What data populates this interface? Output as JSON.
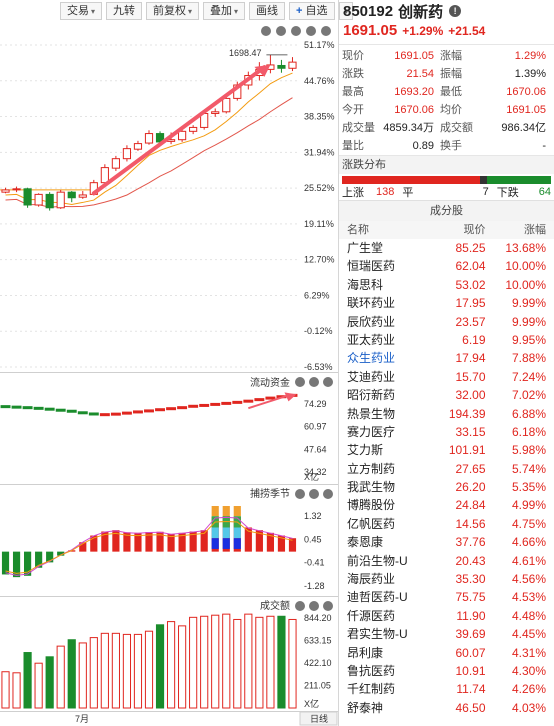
{
  "toolbar": {
    "trade": "交易",
    "jiuzhuan": "九转",
    "adjust": "前复权",
    "overlay": "叠加",
    "draw": "画线",
    "watchlist": "自选",
    "plus": "+",
    "caret": "▾"
  },
  "main_chart": {
    "high_label": "1698.47",
    "pct_ticks": [
      "51.17%",
      "44.76%",
      "38.35%",
      "31.94%",
      "25.52%",
      "19.11%",
      "12.70%",
      "6.29%",
      "-0.12%",
      "-6.53%"
    ],
    "pct_values": [
      51.17,
      44.76,
      38.35,
      31.94,
      25.52,
      19.11,
      12.7,
      6.29,
      -0.12,
      -6.53
    ]
  },
  "fund_flow": {
    "title": "流动资金",
    "ticks": [
      "74.29",
      "60.97",
      "47.64",
      "34.32"
    ],
    "unit": "X亿"
  },
  "catch": {
    "title": "捕捞季节",
    "ticks": [
      "1.32",
      "0.45",
      "-0.41",
      "-1.28"
    ]
  },
  "volume": {
    "title": "成交额",
    "ticks": [
      "844.20",
      "633.15",
      "422.10",
      "211.05"
    ],
    "unit": "X亿",
    "month": "7月",
    "period": "日线"
  },
  "chart_data": [
    {
      "type": "candlestick",
      "name": "daily",
      "values": [
        {
          "o": 24.8,
          "c": 25.2,
          "l": 24.6,
          "h": 25.6,
          "up": true
        },
        {
          "o": 25.3,
          "c": 25.4,
          "l": 24.8,
          "h": 25.8,
          "up": true
        },
        {
          "o": 25.4,
          "c": 22.5,
          "l": 22.0,
          "h": 25.6,
          "up": false
        },
        {
          "o": 22.5,
          "c": 24.4,
          "l": 22.2,
          "h": 24.6,
          "up": true
        },
        {
          "o": 24.4,
          "c": 22.0,
          "l": 21.5,
          "h": 24.8,
          "up": false
        },
        {
          "o": 22.0,
          "c": 24.8,
          "l": 21.8,
          "h": 25.2,
          "up": true
        },
        {
          "o": 24.8,
          "c": 23.8,
          "l": 23.0,
          "h": 25.0,
          "up": false
        },
        {
          "o": 23.9,
          "c": 24.3,
          "l": 23.6,
          "h": 25.0,
          "up": true
        },
        {
          "o": 24.4,
          "c": 26.5,
          "l": 24.2,
          "h": 27.0,
          "up": true
        },
        {
          "o": 26.5,
          "c": 29.2,
          "l": 26.4,
          "h": 29.8,
          "up": true
        },
        {
          "o": 29.1,
          "c": 30.8,
          "l": 28.6,
          "h": 31.3,
          "up": true
        },
        {
          "o": 30.8,
          "c": 32.6,
          "l": 30.3,
          "h": 33.2,
          "up": true
        },
        {
          "o": 32.5,
          "c": 33.5,
          "l": 32.2,
          "h": 34.0,
          "up": true
        },
        {
          "o": 33.6,
          "c": 35.3,
          "l": 33.3,
          "h": 35.9,
          "up": true
        },
        {
          "o": 35.3,
          "c": 33.8,
          "l": 33.5,
          "h": 35.7,
          "up": false
        },
        {
          "o": 33.9,
          "c": 34.2,
          "l": 33.4,
          "h": 35.5,
          "up": true
        },
        {
          "o": 34.2,
          "c": 35.7,
          "l": 33.8,
          "h": 36.0,
          "up": true
        },
        {
          "o": 35.7,
          "c": 36.4,
          "l": 35.2,
          "h": 36.8,
          "up": true
        },
        {
          "o": 36.4,
          "c": 38.9,
          "l": 36.0,
          "h": 39.4,
          "up": true
        },
        {
          "o": 38.9,
          "c": 39.2,
          "l": 38.3,
          "h": 39.8,
          "up": true
        },
        {
          "o": 39.2,
          "c": 41.6,
          "l": 38.9,
          "h": 42.1,
          "up": true
        },
        {
          "o": 41.6,
          "c": 44.0,
          "l": 41.2,
          "h": 44.6,
          "up": true
        },
        {
          "o": 44.0,
          "c": 45.7,
          "l": 43.2,
          "h": 46.4,
          "up": true
        },
        {
          "o": 45.7,
          "c": 46.8,
          "l": 44.8,
          "h": 48.1,
          "up": true
        },
        {
          "o": 46.8,
          "c": 47.6,
          "l": 46.1,
          "h": 49.4,
          "up": true
        },
        {
          "o": 47.5,
          "c": 47.0,
          "l": 46.2,
          "h": 48.5,
          "up": false
        },
        {
          "o": 47.0,
          "c": 48.1,
          "l": 46.5,
          "h": 49.0,
          "up": true
        }
      ]
    },
    {
      "type": "line",
      "name": "fund-flow",
      "values": [
        72.6,
        72.3,
        72.0,
        71.6,
        71.1,
        70.5,
        69.9,
        69.0,
        68.3,
        67.9,
        68.2,
        68.8,
        69.5,
        70.1,
        70.8,
        71.4,
        72.0,
        72.8,
        73.3,
        73.9,
        74.5,
        75.1,
        75.8,
        76.7,
        77.6,
        78.4,
        79.2
      ]
    },
    {
      "type": "bar",
      "name": "catch-season",
      "values": [
        -0.85,
        -0.95,
        -0.9,
        -0.6,
        -0.4,
        -0.15,
        0.05,
        0.35,
        0.6,
        0.75,
        0.8,
        0.72,
        0.7,
        0.73,
        0.74,
        0.66,
        0.7,
        0.75,
        0.8,
        1.3,
        1.32,
        1.3,
        0.9,
        0.8,
        0.7,
        0.6,
        0.5
      ]
    },
    {
      "type": "bar",
      "name": "turnover",
      "values": [
        340,
        330,
        520,
        420,
        480,
        580,
        640,
        610,
        660,
        700,
        700,
        690,
        690,
        720,
        780,
        810,
        770,
        850,
        860,
        870,
        880,
        830,
        880,
        850,
        860,
        860,
        830
      ]
    }
  ],
  "quote": {
    "code": "850192",
    "name": "创新药",
    "price": "1691.05",
    "change_pct": "+1.29%",
    "change": "+21.54",
    "rows": [
      {
        "l1": "现价",
        "v1": "1691.05",
        "c1": "red",
        "l2": "涨幅",
        "v2": "1.29%",
        "c2": "red"
      },
      {
        "l1": "涨跌",
        "v1": "21.54",
        "c1": "red",
        "l2": "振幅",
        "v2": "1.39%",
        "c2": "blk"
      },
      {
        "l1": "最高",
        "v1": "1693.20",
        "c1": "red",
        "l2": "最低",
        "v2": "1670.06",
        "c2": "red"
      },
      {
        "l1": "今开",
        "v1": "1670.06",
        "c1": "red",
        "l2": "均价",
        "v2": "1691.05",
        "c2": "red"
      },
      {
        "l1": "成交量",
        "v1": "4859.34万",
        "c1": "blk",
        "l2": "成交额",
        "v2": "986.34亿",
        "c2": "blk"
      },
      {
        "l1": "量比",
        "v1": "0.89",
        "c1": "blk",
        "l2": "换手",
        "v2": "-",
        "c2": "blk"
      }
    ]
  },
  "distribution": {
    "title": "涨跌分布",
    "up_label": "上涨",
    "up": "138",
    "flat_label": "平",
    "flat": "7",
    "down_label": "下跌",
    "down": "64",
    "up_count": 138,
    "flat_count": 7,
    "down_count": 64
  },
  "components": {
    "title": "成分股",
    "headers": [
      "名称",
      "现价",
      "涨幅"
    ],
    "rows": [
      {
        "name": "广生堂",
        "price": "85.25",
        "pct": "13.68%"
      },
      {
        "name": "恒瑞医药",
        "price": "62.04",
        "pct": "10.00%"
      },
      {
        "name": "海思科",
        "price": "53.02",
        "pct": "10.00%"
      },
      {
        "name": "联环药业",
        "price": "17.95",
        "pct": "9.99%"
      },
      {
        "name": "辰欣药业",
        "price": "23.57",
        "pct": "9.99%"
      },
      {
        "name": "亚太药业",
        "price": "6.19",
        "pct": "9.95%"
      },
      {
        "name": "众生药业",
        "price": "17.94",
        "pct": "7.88%"
      },
      {
        "name": "艾迪药业",
        "price": "15.70",
        "pct": "7.24%"
      },
      {
        "name": "昭衍新药",
        "price": "32.00",
        "pct": "7.02%"
      },
      {
        "name": "热景生物",
        "price": "194.39",
        "pct": "6.88%"
      },
      {
        "name": "赛力医疗",
        "price": "33.15",
        "pct": "6.18%"
      },
      {
        "name": "艾力斯",
        "price": "101.91",
        "pct": "5.98%"
      },
      {
        "name": "立方制药",
        "price": "27.65",
        "pct": "5.74%"
      },
      {
        "name": "我武生物",
        "price": "26.20",
        "pct": "5.35%"
      },
      {
        "name": "博腾股份",
        "price": "24.84",
        "pct": "4.99%"
      },
      {
        "name": "亿帆医药",
        "price": "14.56",
        "pct": "4.75%"
      },
      {
        "name": "泰恩康",
        "price": "37.76",
        "pct": "4.66%"
      },
      {
        "name": "前沿生物-U",
        "price": "20.43",
        "pct": "4.61%"
      },
      {
        "name": "海辰药业",
        "price": "35.30",
        "pct": "4.56%"
      },
      {
        "name": "迪哲医药-U",
        "price": "75.75",
        "pct": "4.53%"
      },
      {
        "name": "仟源医药",
        "price": "11.90",
        "pct": "4.48%"
      },
      {
        "name": "君实生物-U",
        "price": "39.69",
        "pct": "4.45%"
      },
      {
        "name": "昂利康",
        "price": "60.07",
        "pct": "4.31%"
      },
      {
        "name": "鲁抗医药",
        "price": "10.91",
        "pct": "4.30%"
      },
      {
        "name": "千红制药",
        "price": "11.74",
        "pct": "4.26%"
      },
      {
        "name": "舒泰神",
        "price": "46.50",
        "pct": "4.03%"
      }
    ]
  },
  "colors": {
    "up": "#e0261f",
    "down": "#1a8c2c",
    "arrow": "#f25a6a",
    "ma_orange": "#f39c12",
    "ma_red": "#e2574c",
    "highlight_name": "#1a5fc8"
  }
}
